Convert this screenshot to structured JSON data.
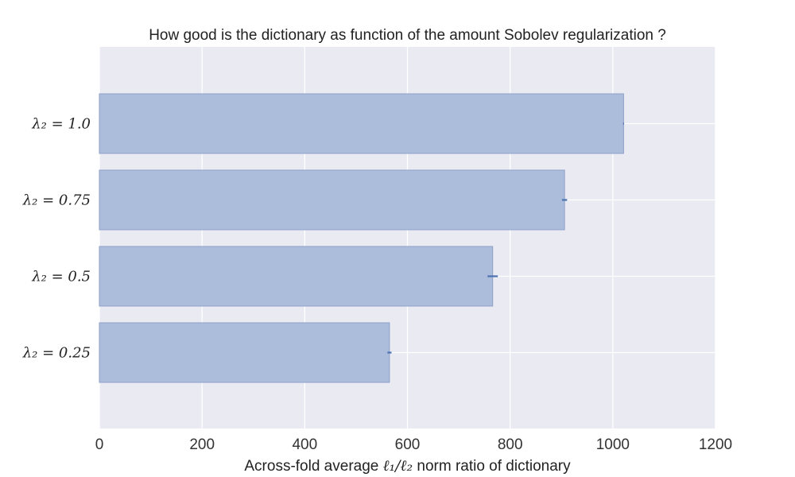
{
  "chart_data": {
    "type": "bar",
    "orientation": "horizontal",
    "title": "How good is the dictionary as function of the amount Sobolev regularization ?",
    "xlabel_parts": [
      "Across-fold average ",
      "ℓ₁/ℓ₂",
      " norm ratio of dictionary"
    ],
    "ylabel": "",
    "categories": [
      "λ₂ = 1.0",
      "λ₂ = 0.75",
      "λ₂ = 0.5",
      "λ₂ = 0.25"
    ],
    "values": [
      1021,
      906,
      766,
      565
    ],
    "errors": [
      1,
      5,
      10,
      4
    ],
    "xlim": [
      0,
      1200
    ],
    "xticks": [
      "0",
      "200",
      "400",
      "600",
      "800",
      "1000",
      "1200"
    ],
    "grid": true,
    "legend": "none",
    "colors": {
      "background": "#eaeaf2",
      "grid": "#ffffff",
      "bar_fill": "#a9b9d9",
      "bar_edge": "#8ea1c8",
      "error_bar": "#4c72b0"
    }
  }
}
